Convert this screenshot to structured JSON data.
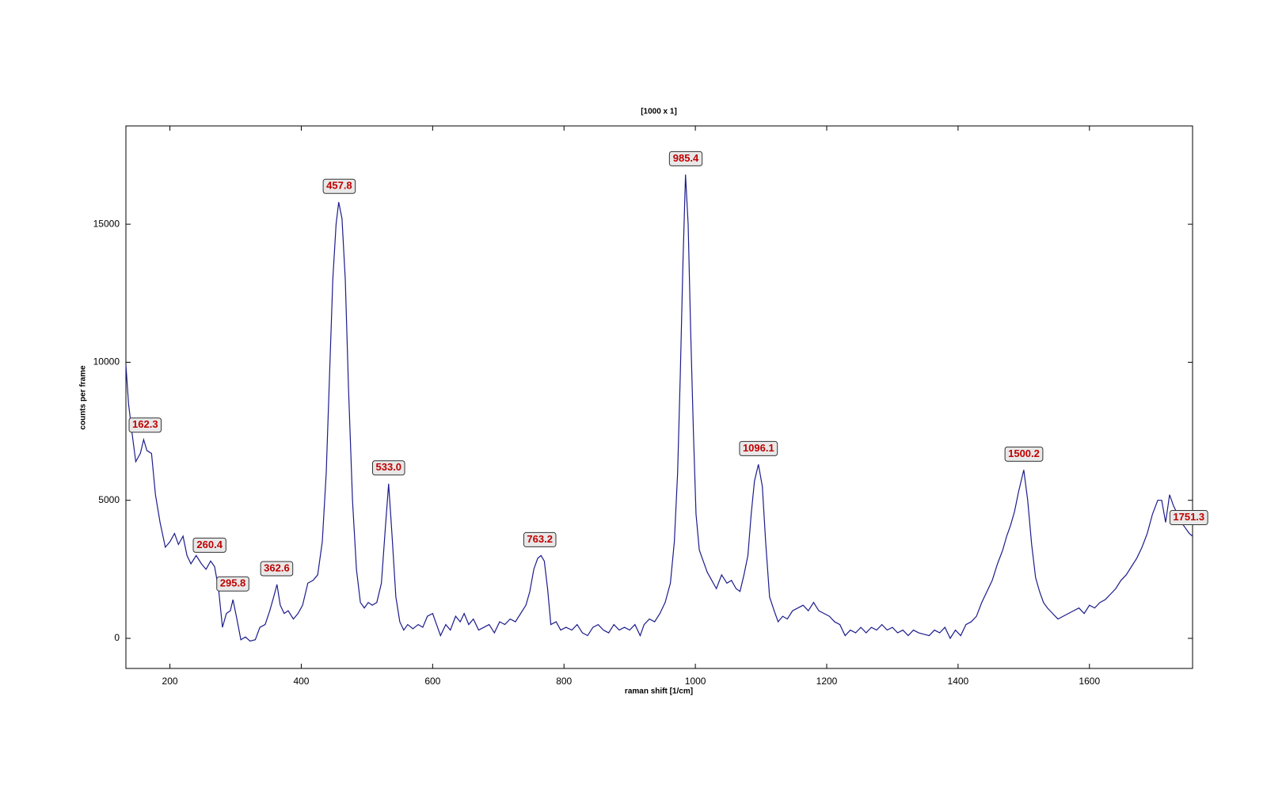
{
  "chart_data": {
    "type": "line",
    "title": "[1000 x 1]",
    "x_label": "raman shift [1/cm]",
    "y_label": "counts per frame",
    "color": "#1c1c8c",
    "xlim": [
      133,
      1757
    ],
    "ylim": [
      -1090,
      18560
    ],
    "xticks": [
      200,
      400,
      600,
      800,
      1000,
      1200,
      1400,
      1600
    ],
    "yticks": [
      0,
      5000,
      10000,
      15000
    ],
    "grid": false,
    "x": [
      133,
      137,
      142,
      148,
      155,
      160,
      165,
      172,
      178,
      185,
      193,
      200,
      207,
      213,
      220,
      226,
      232,
      240,
      248,
      255,
      262,
      268,
      274,
      280,
      286,
      292,
      296,
      302,
      308,
      315,
      322,
      330,
      337,
      345,
      352,
      358,
      363,
      368,
      374,
      380,
      388,
      395,
      402,
      410,
      418,
      425,
      432,
      438,
      443,
      448,
      453,
      457,
      462,
      467,
      472,
      478,
      484,
      490,
      496,
      502,
      508,
      515,
      522,
      528,
      533,
      538,
      544,
      550,
      556,
      562,
      570,
      578,
      585,
      592,
      600,
      606,
      612,
      620,
      627,
      635,
      642,
      648,
      655,
      662,
      670,
      678,
      686,
      694,
      702,
      710,
      718,
      726,
      734,
      742,
      748,
      754,
      760,
      765,
      770,
      775,
      780,
      788,
      795,
      803,
      812,
      820,
      828,
      836,
      844,
      852,
      860,
      868,
      876,
      884,
      892,
      900,
      908,
      916,
      922,
      930,
      938,
      946,
      954,
      962,
      968,
      973,
      977,
      981,
      985,
      989,
      993,
      997,
      1001,
      1006,
      1012,
      1018,
      1025,
      1032,
      1040,
      1048,
      1055,
      1062,
      1068,
      1074,
      1080,
      1085,
      1090,
      1096,
      1102,
      1107,
      1113,
      1120,
      1126,
      1133,
      1140,
      1148,
      1156,
      1164,
      1172,
      1180,
      1188,
      1196,
      1204,
      1212,
      1220,
      1228,
      1236,
      1244,
      1252,
      1260,
      1268,
      1276,
      1284,
      1292,
      1300,
      1308,
      1316,
      1324,
      1332,
      1340,
      1348,
      1356,
      1364,
      1372,
      1380,
      1388,
      1396,
      1404,
      1412,
      1420,
      1428,
      1436,
      1444,
      1452,
      1460,
      1468,
      1474,
      1480,
      1486,
      1492,
      1500,
      1506,
      1512,
      1518,
      1524,
      1530,
      1536,
      1544,
      1552,
      1560,
      1568,
      1576,
      1584,
      1592,
      1600,
      1608,
      1616,
      1624,
      1632,
      1640,
      1648,
      1656,
      1664,
      1672,
      1680,
      1688,
      1696,
      1704,
      1710,
      1716,
      1722,
      1728,
      1734,
      1740,
      1746,
      1752,
      1757
    ],
    "values": [
      9900,
      8500,
      7500,
      6400,
      6700,
      7200,
      6800,
      6700,
      5200,
      4200,
      3300,
      3500,
      3800,
      3400,
      3700,
      3000,
      2700,
      3000,
      2700,
      2500,
      2800,
      2600,
      1800,
      400,
      900,
      1000,
      1400,
      700,
      -50,
      50,
      -100,
      -50,
      400,
      500,
      1000,
      1500,
      1950,
      1200,
      900,
      1000,
      700,
      900,
      1200,
      2000,
      2100,
      2300,
      3500,
      6000,
      9500,
      13000,
      15000,
      15800,
      15200,
      13000,
      9000,
      5000,
      2500,
      1300,
      1100,
      1300,
      1200,
      1300,
      2000,
      4000,
      5600,
      3800,
      1500,
      600,
      300,
      500,
      350,
      500,
      400,
      800,
      900,
      500,
      100,
      500,
      300,
      800,
      600,
      900,
      500,
      700,
      300,
      400,
      500,
      200,
      600,
      500,
      700,
      600,
      900,
      1200,
      1700,
      2500,
      2900,
      3000,
      2800,
      1800,
      500,
      600,
      300,
      400,
      300,
      500,
      200,
      100,
      400,
      500,
      300,
      200,
      500,
      300,
      400,
      300,
      500,
      100,
      500,
      700,
      600,
      900,
      1300,
      2000,
      3500,
      6000,
      9500,
      13500,
      16800,
      15000,
      11000,
      7500,
      4500,
      3200,
      2800,
      2400,
      2100,
      1800,
      2300,
      2000,
      2100,
      1800,
      1700,
      2300,
      3000,
      4500,
      5700,
      6300,
      5500,
      3500,
      1500,
      1000,
      600,
      800,
      700,
      1000,
      1100,
      1200,
      1000,
      1300,
      1000,
      900,
      800,
      600,
      500,
      100,
      300,
      200,
      400,
      200,
      400,
      300,
      500,
      300,
      400,
      200,
      300,
      100,
      300,
      200,
      150,
      100,
      300,
      200,
      400,
      0,
      300,
      100,
      500,
      600,
      800,
      1300,
      1700,
      2100,
      2700,
      3200,
      3700,
      4100,
      4600,
      5300,
      6100,
      5000,
      3400,
      2200,
      1700,
      1300,
      1100,
      900,
      700,
      800,
      900,
      1000,
      1100,
      900,
      1200,
      1100,
      1300,
      1400,
      1600,
      1800,
      2100,
      2300,
      2600,
      2900,
      3300,
      3800,
      4500,
      5000,
      5000,
      4200,
      5200,
      4800,
      4500,
      4200,
      4000,
      3800,
      3700
    ],
    "annotations": [
      {
        "x": 162.3,
        "y": 7150,
        "label": "162.3"
      },
      {
        "x": 260.4,
        "y": 2800,
        "label": "260.4"
      },
      {
        "x": 295.8,
        "y": 1400,
        "label": "295.8"
      },
      {
        "x": 362.6,
        "y": 1950,
        "label": "362.6"
      },
      {
        "x": 457.8,
        "y": 15800,
        "label": "457.8"
      },
      {
        "x": 533.0,
        "y": 5600,
        "label": "533.0"
      },
      {
        "x": 763.2,
        "y": 3000,
        "label": "763.2"
      },
      {
        "x": 985.4,
        "y": 16800,
        "label": "985.4"
      },
      {
        "x": 1096.1,
        "y": 6300,
        "label": "1096.1"
      },
      {
        "x": 1500.2,
        "y": 6100,
        "label": "1500.2"
      },
      {
        "x": 1751.3,
        "y": 3800,
        "label": "1751.3"
      }
    ]
  }
}
